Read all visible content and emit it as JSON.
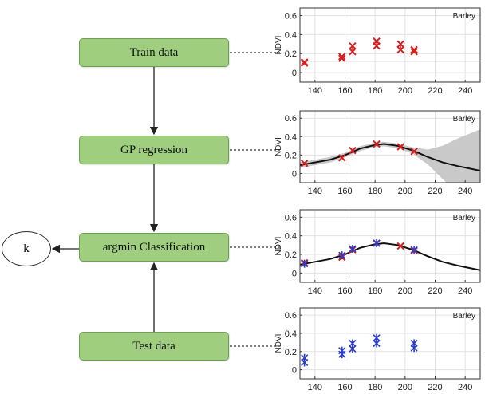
{
  "nodes": {
    "train": "Train data",
    "gp": "GP regression",
    "argmin": "argmin Classification",
    "test": "Test data",
    "output": "k"
  },
  "colors": {
    "node_fill": "#9fcf7e",
    "train_marker": "#d42020",
    "test_marker": "#2a3cc8",
    "fit_line": "#111111",
    "band": "#c8c8c8"
  },
  "chart_data": [
    {
      "type": "scatter",
      "title": "Barley",
      "xlabel": "",
      "ylabel": "NDVI",
      "xlim": [
        130,
        250
      ],
      "ylim": [
        -0.1,
        0.68
      ],
      "xticks": [
        140,
        160,
        180,
        200,
        220,
        240
      ],
      "yticks": [
        0,
        0.2,
        0.4,
        0.6
      ],
      "reference_line": 0.12,
      "marker_color": "#d42020",
      "points": [
        {
          "x": 133,
          "y": 0.1
        },
        {
          "x": 133,
          "y": 0.11
        },
        {
          "x": 158,
          "y": 0.15
        },
        {
          "x": 158,
          "y": 0.17
        },
        {
          "x": 165,
          "y": 0.22
        },
        {
          "x": 165,
          "y": 0.28
        },
        {
          "x": 181,
          "y": 0.28
        },
        {
          "x": 181,
          "y": 0.33
        },
        {
          "x": 197,
          "y": 0.24
        },
        {
          "x": 197,
          "y": 0.3
        },
        {
          "x": 206,
          "y": 0.22
        },
        {
          "x": 206,
          "y": 0.24
        }
      ]
    },
    {
      "type": "line",
      "title": "Barley",
      "xlabel": "",
      "ylabel": "NDVI",
      "xlim": [
        130,
        250
      ],
      "ylim": [
        -0.1,
        0.68
      ],
      "xticks": [
        140,
        160,
        180,
        200,
        220,
        240
      ],
      "yticks": [
        0,
        0.2,
        0.4,
        0.6
      ],
      "marker_color": "#d42020",
      "band": true,
      "mean_curve": [
        {
          "x": 130,
          "y": 0.09
        },
        {
          "x": 140,
          "y": 0.12
        },
        {
          "x": 150,
          "y": 0.15
        },
        {
          "x": 160,
          "y": 0.2
        },
        {
          "x": 170,
          "y": 0.27
        },
        {
          "x": 180,
          "y": 0.31
        },
        {
          "x": 186,
          "y": 0.32
        },
        {
          "x": 195,
          "y": 0.3
        },
        {
          "x": 205,
          "y": 0.25
        },
        {
          "x": 215,
          "y": 0.18
        },
        {
          "x": 225,
          "y": 0.12
        },
        {
          "x": 235,
          "y": 0.08
        },
        {
          "x": 250,
          "y": 0.03
        }
      ],
      "band_halfwidth": [
        {
          "x": 130,
          "y": 0.03
        },
        {
          "x": 140,
          "y": 0.03
        },
        {
          "x": 150,
          "y": 0.03
        },
        {
          "x": 160,
          "y": 0.025
        },
        {
          "x": 170,
          "y": 0.025
        },
        {
          "x": 180,
          "y": 0.025
        },
        {
          "x": 186,
          "y": 0.025
        },
        {
          "x": 195,
          "y": 0.025
        },
        {
          "x": 205,
          "y": 0.035
        },
        {
          "x": 215,
          "y": 0.08
        },
        {
          "x": 225,
          "y": 0.18
        },
        {
          "x": 235,
          "y": 0.3
        },
        {
          "x": 250,
          "y": 0.45
        }
      ],
      "points": [
        {
          "x": 133,
          "y": 0.11
        },
        {
          "x": 158,
          "y": 0.17
        },
        {
          "x": 165,
          "y": 0.25
        },
        {
          "x": 181,
          "y": 0.32
        },
        {
          "x": 197,
          "y": 0.29
        },
        {
          "x": 206,
          "y": 0.24
        }
      ]
    },
    {
      "type": "line",
      "title": "Barley",
      "xlabel": "",
      "ylabel": "NDVI",
      "xlim": [
        130,
        250
      ],
      "ylim": [
        -0.1,
        0.68
      ],
      "xticks": [
        140,
        160,
        180,
        200,
        220,
        240
      ],
      "yticks": [
        0,
        0.2,
        0.4,
        0.6
      ],
      "marker_colors": [
        "#d42020",
        "#2a3cc8"
      ],
      "mean_curve": [
        {
          "x": 130,
          "y": 0.09
        },
        {
          "x": 140,
          "y": 0.12
        },
        {
          "x": 150,
          "y": 0.15
        },
        {
          "x": 160,
          "y": 0.2
        },
        {
          "x": 170,
          "y": 0.27
        },
        {
          "x": 180,
          "y": 0.31
        },
        {
          "x": 186,
          "y": 0.32
        },
        {
          "x": 195,
          "y": 0.3
        },
        {
          "x": 205,
          "y": 0.25
        },
        {
          "x": 215,
          "y": 0.18
        },
        {
          "x": 225,
          "y": 0.12
        },
        {
          "x": 235,
          "y": 0.08
        },
        {
          "x": 250,
          "y": 0.03
        }
      ],
      "points_red": [
        {
          "x": 133,
          "y": 0.11
        },
        {
          "x": 158,
          "y": 0.17
        },
        {
          "x": 165,
          "y": 0.25
        },
        {
          "x": 181,
          "y": 0.32
        },
        {
          "x": 197,
          "y": 0.29
        },
        {
          "x": 206,
          "y": 0.24
        }
      ],
      "points_blue": [
        {
          "x": 133,
          "y": 0.1
        },
        {
          "x": 158,
          "y": 0.19
        },
        {
          "x": 165,
          "y": 0.26
        },
        {
          "x": 181,
          "y": 0.32
        },
        {
          "x": 206,
          "y": 0.25
        }
      ]
    },
    {
      "type": "scatter",
      "title": "Barley",
      "xlabel": "",
      "ylabel": "NDVI",
      "xlim": [
        130,
        250
      ],
      "ylim": [
        -0.1,
        0.68
      ],
      "xticks": [
        140,
        160,
        180,
        200,
        220,
        240
      ],
      "yticks": [
        0,
        0.2,
        0.4,
        0.6
      ],
      "reference_line": 0.14,
      "marker_color": "#2a3cc8",
      "points": [
        {
          "x": 133,
          "y": 0.08
        },
        {
          "x": 133,
          "y": 0.13
        },
        {
          "x": 158,
          "y": 0.17
        },
        {
          "x": 158,
          "y": 0.21
        },
        {
          "x": 165,
          "y": 0.23
        },
        {
          "x": 165,
          "y": 0.29
        },
        {
          "x": 181,
          "y": 0.29
        },
        {
          "x": 181,
          "y": 0.35
        },
        {
          "x": 206,
          "y": 0.24
        },
        {
          "x": 206,
          "y": 0.29
        }
      ]
    }
  ]
}
